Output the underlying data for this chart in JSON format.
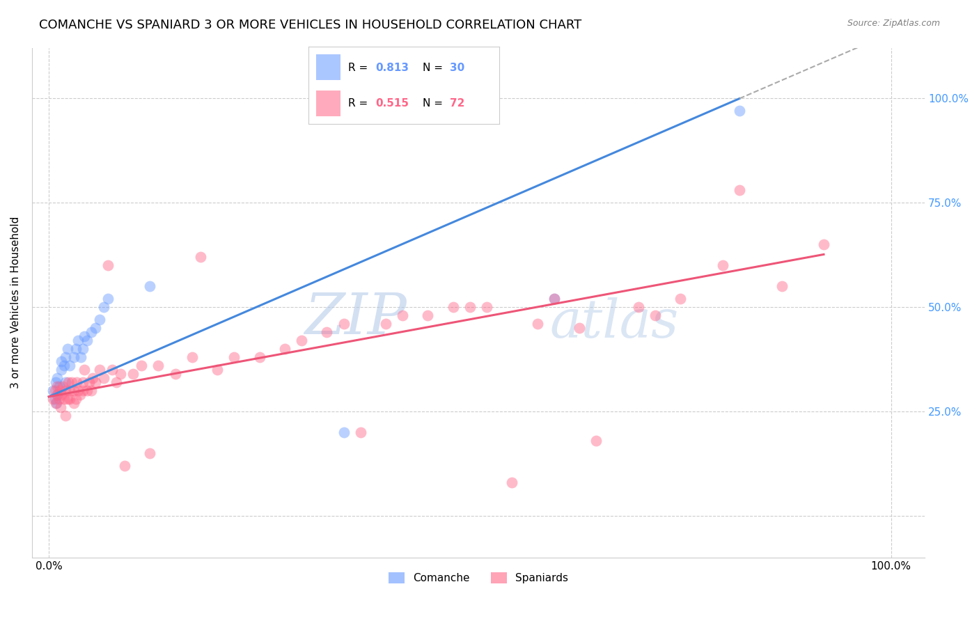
{
  "title": "COMANCHE VS SPANIARD 3 OR MORE VEHICLES IN HOUSEHOLD CORRELATION CHART",
  "source": "Source: ZipAtlas.com",
  "ylabel": "3 or more Vehicles in Household",
  "comanche_color": "#6699ff",
  "spaniard_color": "#ff6688",
  "comanche_R": "0.813",
  "comanche_N": "30",
  "spaniard_R": "0.515",
  "spaniard_N": "72",
  "comanche_legend": "Comanche",
  "spaniard_legend": "Spaniards",
  "watermark": "ZIPatlas",
  "comanche_scatter_x": [
    0.005,
    0.007,
    0.008,
    0.009,
    0.01,
    0.01,
    0.012,
    0.015,
    0.015,
    0.018,
    0.02,
    0.02,
    0.022,
    0.025,
    0.03,
    0.032,
    0.035,
    0.038,
    0.04,
    0.042,
    0.045,
    0.05,
    0.055,
    0.06,
    0.065,
    0.07,
    0.12,
    0.35,
    0.6,
    0.82
  ],
  "comanche_scatter_y": [
    0.3,
    0.28,
    0.32,
    0.27,
    0.29,
    0.33,
    0.31,
    0.37,
    0.35,
    0.36,
    0.32,
    0.38,
    0.4,
    0.36,
    0.38,
    0.4,
    0.42,
    0.38,
    0.4,
    0.43,
    0.42,
    0.44,
    0.45,
    0.47,
    0.5,
    0.52,
    0.55,
    0.2,
    0.52,
    0.97
  ],
  "spaniard_scatter_x": [
    0.005,
    0.007,
    0.008,
    0.01,
    0.01,
    0.012,
    0.013,
    0.014,
    0.015,
    0.016,
    0.018,
    0.02,
    0.02,
    0.022,
    0.023,
    0.025,
    0.025,
    0.027,
    0.03,
    0.03,
    0.032,
    0.033,
    0.035,
    0.037,
    0.04,
    0.04,
    0.042,
    0.045,
    0.048,
    0.05,
    0.052,
    0.055,
    0.06,
    0.065,
    0.07,
    0.075,
    0.08,
    0.085,
    0.09,
    0.1,
    0.11,
    0.12,
    0.13,
    0.15,
    0.17,
    0.18,
    0.2,
    0.22,
    0.25,
    0.28,
    0.3,
    0.33,
    0.35,
    0.37,
    0.4,
    0.42,
    0.45,
    0.48,
    0.5,
    0.52,
    0.55,
    0.58,
    0.6,
    0.63,
    0.65,
    0.7,
    0.72,
    0.75,
    0.8,
    0.82,
    0.87,
    0.92
  ],
  "spaniard_scatter_y": [
    0.28,
    0.3,
    0.27,
    0.29,
    0.31,
    0.28,
    0.3,
    0.26,
    0.29,
    0.31,
    0.28,
    0.24,
    0.3,
    0.28,
    0.32,
    0.3,
    0.28,
    0.32,
    0.27,
    0.3,
    0.28,
    0.32,
    0.3,
    0.29,
    0.32,
    0.3,
    0.35,
    0.3,
    0.32,
    0.3,
    0.33,
    0.32,
    0.35,
    0.33,
    0.6,
    0.35,
    0.32,
    0.34,
    0.12,
    0.34,
    0.36,
    0.15,
    0.36,
    0.34,
    0.38,
    0.62,
    0.35,
    0.38,
    0.38,
    0.4,
    0.42,
    0.44,
    0.46,
    0.2,
    0.46,
    0.48,
    0.48,
    0.5,
    0.5,
    0.5,
    0.08,
    0.46,
    0.52,
    0.45,
    0.18,
    0.5,
    0.48,
    0.52,
    0.6,
    0.78,
    0.55,
    0.65
  ],
  "background_color": "#ffffff",
  "grid_color": "#cccccc",
  "title_fontsize": 13,
  "label_fontsize": 11,
  "tick_fontsize": 11,
  "right_tick_color": "#4499ff",
  "marker_size": 130,
  "marker_alpha": 0.45,
  "blue_line_intercept": 0.285,
  "blue_line_slope": 0.87,
  "pink_line_intercept": 0.285,
  "pink_line_slope": 0.37
}
